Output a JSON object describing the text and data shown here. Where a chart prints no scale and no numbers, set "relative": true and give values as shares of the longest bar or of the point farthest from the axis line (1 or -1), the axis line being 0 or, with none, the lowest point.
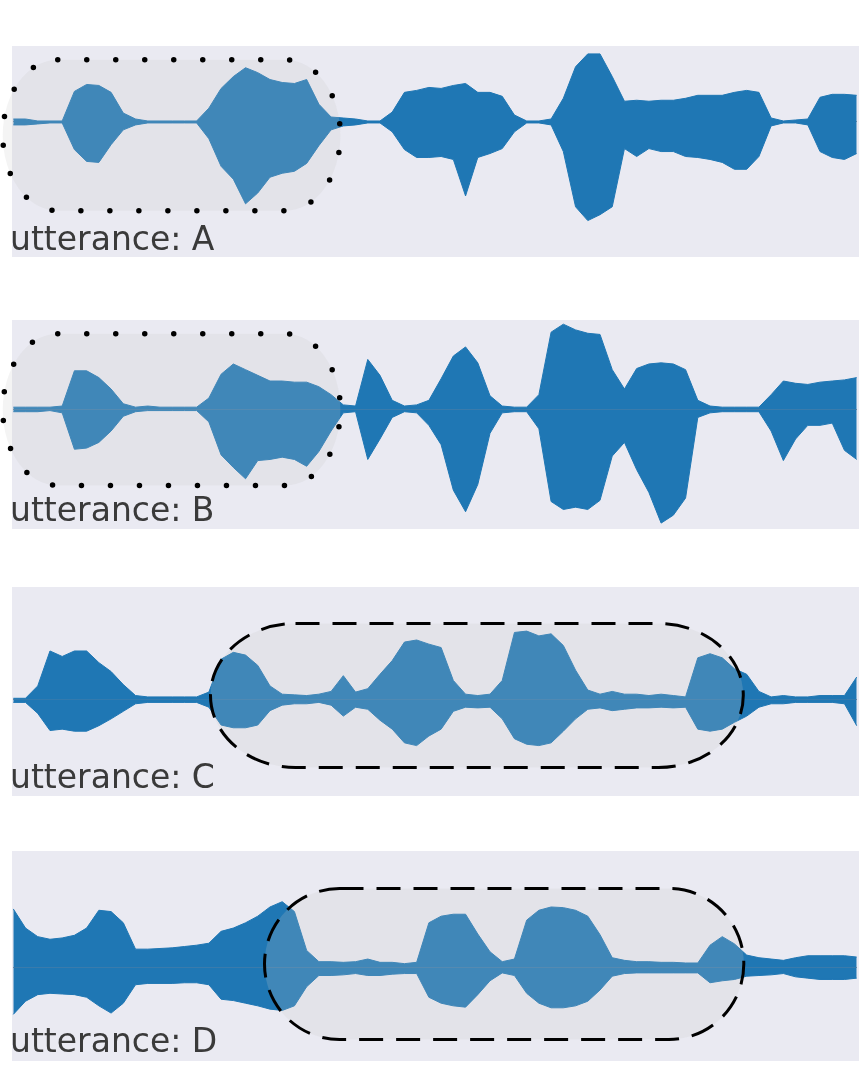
{
  "chart_data": [
    {
      "type": "area",
      "title": "utterance: A",
      "relative": true,
      "categories": [
        null,
        null,
        null,
        null,
        null,
        null,
        null,
        null,
        null,
        null,
        null,
        null,
        null,
        null,
        null,
        null,
        null,
        null,
        null,
        null,
        null,
        null,
        null,
        null,
        null,
        null,
        null,
        null,
        null,
        null,
        null,
        null,
        null,
        null,
        null,
        null,
        null,
        null,
        null,
        null,
        null,
        null,
        null,
        null,
        null,
        null,
        null,
        null,
        null,
        null,
        null,
        null,
        null,
        null,
        null,
        null,
        null,
        null,
        null,
        null,
        null,
        null,
        null,
        null,
        null,
        null,
        null,
        null,
        null,
        null
      ],
      "series": [
        {
          "color": "#1f77b4",
          "values": [
            0.03,
            0.03,
            0.01,
            0.01,
            0.01,
            0.31,
            0.38,
            0.37,
            0.3,
            0.09,
            0.03,
            0.01,
            0.01,
            0.01,
            0.01,
            0.01,
            0.14,
            0.34,
            0.46,
            0.55,
            0.5,
            0.43,
            0.4,
            0.39,
            0.43,
            0.18,
            0.05,
            0.04,
            0.03,
            0.01,
            0.01,
            0.1,
            0.3,
            0.32,
            0.35,
            0.34,
            0.37,
            0.39,
            0.3,
            0.3,
            0.26,
            0.07,
            0.01,
            0.01,
            0.03,
            0.24,
            0.56,
            0.69,
            0.69,
            0.46,
            0.21,
            0.22,
            0.21,
            0.22,
            0.22,
            0.24,
            0.27,
            0.27,
            0.27,
            0.3,
            0.32,
            0.3,
            0.04,
            0.01,
            0.02,
            0.03,
            0.25,
            0.28,
            0.28,
            0.27
          ]
        },
        {
          "color": "#1f77b4",
          "values": [
            -0.03,
            -0.03,
            -0.02,
            -0.01,
            -0.01,
            -0.28,
            -0.4,
            -0.41,
            -0.23,
            -0.08,
            -0.03,
            -0.01,
            -0.01,
            -0.01,
            -0.01,
            -0.01,
            -0.17,
            -0.45,
            -0.58,
            -0.83,
            -0.72,
            -0.56,
            -0.52,
            -0.5,
            -0.42,
            -0.24,
            -0.08,
            -0.04,
            -0.03,
            -0.01,
            -0.01,
            -0.1,
            -0.28,
            -0.36,
            -0.36,
            -0.35,
            -0.38,
            -0.75,
            -0.36,
            -0.32,
            -0.27,
            -0.1,
            -0.01,
            -0.01,
            -0.03,
            -0.3,
            -0.86,
            -1,
            -0.94,
            -0.86,
            -0.27,
            -0.35,
            -0.27,
            -0.3,
            -0.3,
            -0.35,
            -0.36,
            -0.38,
            -0.41,
            -0.48,
            -0.48,
            -0.35,
            -0.04,
            -0.01,
            -0.01,
            -0.03,
            -0.3,
            -0.36,
            -0.38,
            -0.32
          ]
        }
      ]
    },
    {
      "type": "area",
      "title": "utterance: B",
      "relative": true,
      "categories": [
        null,
        null,
        null,
        null,
        null,
        null,
        null,
        null,
        null,
        null,
        null,
        null,
        null,
        null,
        null,
        null,
        null,
        null,
        null,
        null,
        null,
        null,
        null,
        null,
        null,
        null,
        null,
        null,
        null,
        null,
        null,
        null,
        null,
        null,
        null,
        null,
        null,
        null,
        null,
        null,
        null,
        null,
        null,
        null,
        null,
        null,
        null,
        null,
        null,
        null,
        null,
        null,
        null,
        null,
        null,
        null,
        null,
        null,
        null,
        null,
        null,
        null,
        null,
        null,
        null,
        null,
        null,
        null,
        null,
        null
      ],
      "series": [
        {
          "color": "#1f77b4",
          "values": [
            0.02,
            0.02,
            0.02,
            0.02,
            0.03,
            0.34,
            0.34,
            0.28,
            0.18,
            0.05,
            0.02,
            0.03,
            0.02,
            0.02,
            0.02,
            0.02,
            0.1,
            0.31,
            0.4,
            0.35,
            0.3,
            0.25,
            0.25,
            0.24,
            0.24,
            0.2,
            0.13,
            0.04,
            0.03,
            0.44,
            0.3,
            0.08,
            0.03,
            0.04,
            0.08,
            0.27,
            0.47,
            0.55,
            0.41,
            0.12,
            0.03,
            0.02,
            0.02,
            0.13,
            0.68,
            0.75,
            0.7,
            0.67,
            0.66,
            0.35,
            0.18,
            0.36,
            0.4,
            0.41,
            0.4,
            0.35,
            0.08,
            0.03,
            0.02,
            0.02,
            0.02,
            0.02,
            0.13,
            0.25,
            0.23,
            0.22,
            0.24,
            0.25,
            0.26,
            0.28
          ]
        },
        {
          "color": "#1f77b4",
          "values": [
            -0.02,
            -0.02,
            -0.02,
            -0.01,
            -0.03,
            -0.35,
            -0.34,
            -0.29,
            -0.19,
            -0.06,
            -0.02,
            -0.01,
            -0.01,
            -0.01,
            -0.01,
            -0.01,
            -0.11,
            -0.4,
            -0.51,
            -0.61,
            -0.45,
            -0.44,
            -0.42,
            -0.44,
            -0.5,
            -0.37,
            -0.19,
            -0.03,
            -0.02,
            -0.44,
            -0.26,
            -0.07,
            -0.02,
            -0.03,
            -0.14,
            -0.31,
            -0.71,
            -0.9,
            -0.66,
            -0.21,
            -0.03,
            -0.02,
            -0.02,
            -0.17,
            -0.81,
            -0.88,
            -0.86,
            -0.88,
            -0.8,
            -0.41,
            -0.29,
            -0.53,
            -0.73,
            -1,
            -0.93,
            -0.78,
            -0.07,
            -0.03,
            -0.02,
            -0.02,
            -0.02,
            -0.02,
            -0.19,
            -0.45,
            -0.26,
            -0.14,
            -0.14,
            -0.12,
            -0.36,
            -0.44
          ]
        }
      ]
    },
    {
      "type": "area",
      "title": "utterance: C",
      "relative": true,
      "categories": [
        null,
        null,
        null,
        null,
        null,
        null,
        null,
        null,
        null,
        null,
        null,
        null,
        null,
        null,
        null,
        null,
        null,
        null,
        null,
        null,
        null,
        null,
        null,
        null,
        null,
        null,
        null,
        null,
        null,
        null,
        null,
        null,
        null,
        null,
        null,
        null,
        null,
        null,
        null,
        null,
        null,
        null,
        null,
        null,
        null,
        null,
        null,
        null,
        null,
        null,
        null,
        null,
        null,
        null,
        null,
        null,
        null,
        null,
        null,
        null,
        null,
        null,
        null,
        null,
        null,
        null,
        null,
        null,
        null,
        null
      ],
      "series": [
        {
          "color": "#1f77b4",
          "values": [
            0.02,
            0.02,
            0.2,
            0.71,
            0.63,
            0.71,
            0.71,
            0.54,
            0.41,
            0.22,
            0.06,
            0.04,
            0.04,
            0.04,
            0.04,
            0.04,
            0.11,
            0.59,
            0.69,
            0.65,
            0.5,
            0.2,
            0.08,
            0.07,
            0.06,
            0.08,
            0.12,
            0.35,
            0.11,
            0.16,
            0.37,
            0.57,
            0.84,
            0.87,
            0.81,
            0.76,
            0.28,
            0.08,
            0.06,
            0.08,
            0.28,
            0.98,
            1,
            0.93,
            0.96,
            0.79,
            0.43,
            0.14,
            0.08,
            0.12,
            0.08,
            0.08,
            0.06,
            0.08,
            0.06,
            0.04,
            0.61,
            0.67,
            0.61,
            0.45,
            0.37,
            0.12,
            0.04,
            0.06,
            0.04,
            0.04,
            0.06,
            0.06,
            0.06,
            0.33
          ]
        },
        {
          "color": "#1f77b4",
          "values": [
            -0.04,
            -0.04,
            -0.2,
            -0.45,
            -0.43,
            -0.46,
            -0.46,
            -0.38,
            -0.28,
            -0.17,
            -0.06,
            -0.04,
            -0.04,
            -0.04,
            -0.04,
            -0.04,
            -0.11,
            -0.37,
            -0.41,
            -0.41,
            -0.37,
            -0.16,
            -0.08,
            -0.06,
            -0.06,
            -0.04,
            -0.08,
            -0.24,
            -0.11,
            -0.14,
            -0.3,
            -0.43,
            -0.63,
            -0.67,
            -0.53,
            -0.43,
            -0.17,
            -0.11,
            -0.12,
            -0.11,
            -0.28,
            -0.57,
            -0.65,
            -0.67,
            -0.63,
            -0.46,
            -0.28,
            -0.14,
            -0.12,
            -0.16,
            -0.14,
            -0.12,
            -0.12,
            -0.11,
            -0.12,
            -0.11,
            -0.43,
            -0.46,
            -0.43,
            -0.33,
            -0.24,
            -0.11,
            -0.06,
            -0.06,
            -0.04,
            -0.04,
            -0.04,
            -0.04,
            -0.06,
            -0.38
          ]
        }
      ]
    },
    {
      "type": "area",
      "title": "utterance: D",
      "relative": true,
      "categories": [
        null,
        null,
        null,
        null,
        null,
        null,
        null,
        null,
        null,
        null,
        null,
        null,
        null,
        null,
        null,
        null,
        null,
        null,
        null,
        null,
        null,
        null,
        null,
        null,
        null,
        null,
        null,
        null,
        null,
        null,
        null,
        null,
        null,
        null,
        null,
        null,
        null,
        null,
        null,
        null,
        null,
        null,
        null,
        null,
        null,
        null,
        null,
        null,
        null,
        null,
        null,
        null,
        null,
        null,
        null,
        null,
        null,
        null,
        null,
        null,
        null,
        null,
        null,
        null,
        null,
        null,
        null,
        null,
        null,
        null
      ],
      "series": [
        {
          "color": "#1f77b4",
          "values": [
            0.89,
            0.6,
            0.47,
            0.43,
            0.45,
            0.49,
            0.6,
            0.87,
            0.85,
            0.68,
            0.28,
            0.28,
            0.29,
            0.3,
            0.32,
            0.34,
            0.37,
            0.55,
            0.6,
            0.68,
            0.78,
            0.92,
            1,
            0.85,
            0.26,
            0.09,
            0.09,
            0.08,
            0.09,
            0.13,
            0.08,
            0.08,
            0.06,
            0.08,
            0.68,
            0.78,
            0.81,
            0.81,
            0.51,
            0.24,
            0.09,
            0.13,
            0.72,
            0.87,
            0.92,
            0.91,
            0.87,
            0.78,
            0.5,
            0.15,
            0.11,
            0.09,
            0.09,
            0.08,
            0.08,
            0.07,
            0.07,
            0.34,
            0.47,
            0.36,
            0.19,
            0.15,
            0.13,
            0.11,
            0.15,
            0.18,
            0.18,
            0.18,
            0.18,
            0.16
          ]
        },
        {
          "color": "#1f77b4",
          "values": [
            -0.71,
            -0.51,
            -0.41,
            -0.39,
            -0.4,
            -0.41,
            -0.45,
            -0.58,
            -0.69,
            -0.54,
            -0.26,
            -0.24,
            -0.24,
            -0.24,
            -0.23,
            -0.23,
            -0.26,
            -0.48,
            -0.5,
            -0.54,
            -0.58,
            -0.63,
            -0.65,
            -0.58,
            -0.29,
            -0.12,
            -0.12,
            -0.11,
            -0.09,
            -0.12,
            -0.12,
            -0.1,
            -0.09,
            -0.09,
            -0.45,
            -0.54,
            -0.58,
            -0.6,
            -0.41,
            -0.2,
            -0.08,
            -0.12,
            -0.39,
            -0.54,
            -0.61,
            -0.61,
            -0.58,
            -0.51,
            -0.34,
            -0.13,
            -0.09,
            -0.08,
            -0.08,
            -0.08,
            -0.08,
            -0.08,
            -0.08,
            -0.23,
            -0.2,
            -0.18,
            -0.13,
            -0.12,
            -0.11,
            -0.09,
            -0.14,
            -0.16,
            -0.18,
            -0.18,
            -0.18,
            -0.16
          ]
        }
      ]
    }
  ]
}
